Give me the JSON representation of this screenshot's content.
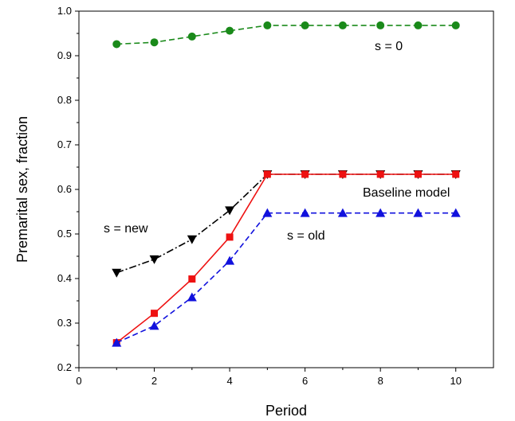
{
  "chart_data": {
    "type": "line",
    "title": "",
    "xlabel": "Period",
    "ylabel": "Premarital sex, fraction",
    "xlim": [
      0,
      11
    ],
    "ylim": [
      0.2,
      1.0
    ],
    "xticks": [
      0,
      2,
      4,
      6,
      8,
      10
    ],
    "yticks": [
      0.2,
      0.3,
      0.4,
      0.5,
      0.6,
      0.7,
      0.8,
      0.9,
      1.0
    ],
    "grid": false,
    "x": [
      1,
      2,
      3,
      4,
      5,
      6,
      7,
      8,
      9,
      10
    ],
    "series": [
      {
        "label": "s = 0",
        "color": "#1a8a1a",
        "line": "dashed",
        "marker": "circle",
        "values": [
          0.926,
          0.93,
          0.943,
          0.956,
          0.968,
          0.968,
          0.968,
          0.968,
          0.968,
          0.968
        ]
      },
      {
        "label": "s = new",
        "color": "#000000",
        "line": "dash-dot",
        "marker": "triangle-down",
        "values": [
          0.413,
          0.443,
          0.488,
          0.553,
          0.634,
          0.634,
          0.634,
          0.634,
          0.634,
          0.634
        ]
      },
      {
        "label": "Baseline model",
        "color": "#ee1111",
        "line": "solid",
        "marker": "square",
        "values": [
          0.256,
          0.322,
          0.399,
          0.493,
          0.634,
          0.634,
          0.634,
          0.634,
          0.634,
          0.634
        ]
      },
      {
        "label": "s = old",
        "color": "#1111dd",
        "line": "dashed",
        "marker": "triangle-up",
        "values": [
          0.256,
          0.294,
          0.358,
          0.44,
          0.547,
          0.547,
          0.547,
          0.547,
          0.547,
          0.547
        ]
      }
    ]
  }
}
